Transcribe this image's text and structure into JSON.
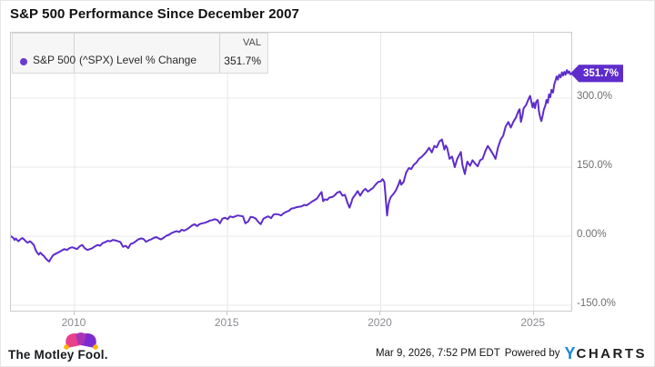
{
  "title": "S&P 500 Performance Since December 2007",
  "legend": {
    "series_name": "S&P 500",
    "series_desc": "(^SPX) Level % Change",
    "val_header": "VAL",
    "val": "351.7%",
    "dot_color": "#6a3bd0"
  },
  "badge": {
    "label": "351.7%",
    "color": "#5e2ccb"
  },
  "footer": {
    "brand": "The Motley Fool.",
    "timestamp": "Mar 9, 2026, 7:52 PM EDT",
    "powered_by": "Powered by",
    "ycharts_y": "Y",
    "ycharts_rest": "CHARTS"
  },
  "chart_data": {
    "type": "line",
    "title": "S&P 500 Performance Since December 2007",
    "xlabel": "",
    "ylabel": "Level % Change",
    "grid": true,
    "grid_color": "#e8e8e8",
    "legend_position": "top-left",
    "xlim": [
      2007.92,
      2026.227
    ],
    "ylim": [
      -161.84,
      442.11
    ],
    "end_value": 351.7,
    "y_ticks": [
      {
        "label": "300.0%",
        "value": 300
      },
      {
        "label": "150.0%",
        "value": 150
      },
      {
        "label": "0.00%",
        "value": 0
      },
      {
        "label": "-150.0%",
        "value": -150
      }
    ],
    "x_ticks": [
      {
        "label": "2010",
        "year": 2010
      },
      {
        "label": "2015",
        "year": 2015
      },
      {
        "label": "2020",
        "year": 2020
      },
      {
        "label": "2025",
        "year": 2025
      }
    ],
    "series": [
      {
        "name": "S&P 500 (^SPX) Level % Change",
        "color": "#5e2ccb",
        "points": [
          [
            2007.92,
            0
          ],
          [
            2008.0,
            -4
          ],
          [
            2008.04,
            -8
          ],
          [
            2008.08,
            -5
          ],
          [
            2008.13,
            -9
          ],
          [
            2008.17,
            -11
          ],
          [
            2008.21,
            -8
          ],
          [
            2008.25,
            -6
          ],
          [
            2008.29,
            -4
          ],
          [
            2008.33,
            -6
          ],
          [
            2008.38,
            -9
          ],
          [
            2008.42,
            -12
          ],
          [
            2008.46,
            -14
          ],
          [
            2008.5,
            -13
          ],
          [
            2008.54,
            -11
          ],
          [
            2008.58,
            -13
          ],
          [
            2008.62,
            -16
          ],
          [
            2008.67,
            -19
          ],
          [
            2008.71,
            -27
          ],
          [
            2008.75,
            -33
          ],
          [
            2008.79,
            -37
          ],
          [
            2008.83,
            -40
          ],
          [
            2008.88,
            -36
          ],
          [
            2008.92,
            -38
          ],
          [
            2008.96,
            -41
          ],
          [
            2009.0,
            -43
          ],
          [
            2009.04,
            -47
          ],
          [
            2009.08,
            -50
          ],
          [
            2009.13,
            -53
          ],
          [
            2009.17,
            -55
          ],
          [
            2009.21,
            -50
          ],
          [
            2009.25,
            -46
          ],
          [
            2009.29,
            -42
          ],
          [
            2009.33,
            -40
          ],
          [
            2009.42,
            -37
          ],
          [
            2009.5,
            -34
          ],
          [
            2009.58,
            -31
          ],
          [
            2009.67,
            -28
          ],
          [
            2009.75,
            -30
          ],
          [
            2009.83,
            -26
          ],
          [
            2009.92,
            -24
          ],
          [
            2010.0,
            -26
          ],
          [
            2010.08,
            -28
          ],
          [
            2010.17,
            -22
          ],
          [
            2010.25,
            -19
          ],
          [
            2010.33,
            -26
          ],
          [
            2010.42,
            -30
          ],
          [
            2010.5,
            -28
          ],
          [
            2010.58,
            -26
          ],
          [
            2010.67,
            -22
          ],
          [
            2010.75,
            -19
          ],
          [
            2010.83,
            -21
          ],
          [
            2010.92,
            -15
          ],
          [
            2011.0,
            -13
          ],
          [
            2011.08,
            -10
          ],
          [
            2011.17,
            -11
          ],
          [
            2011.25,
            -8
          ],
          [
            2011.33,
            -9
          ],
          [
            2011.42,
            -11
          ],
          [
            2011.5,
            -13
          ],
          [
            2011.58,
            -23
          ],
          [
            2011.67,
            -21
          ],
          [
            2011.75,
            -26
          ],
          [
            2011.83,
            -17
          ],
          [
            2011.92,
            -15
          ],
          [
            2012.0,
            -11
          ],
          [
            2012.08,
            -7
          ],
          [
            2012.17,
            -5
          ],
          [
            2012.25,
            -6
          ],
          [
            2012.33,
            -12
          ],
          [
            2012.42,
            -9
          ],
          [
            2012.5,
            -7
          ],
          [
            2012.58,
            -4
          ],
          [
            2012.67,
            -2
          ],
          [
            2012.75,
            -5
          ],
          [
            2012.83,
            -7
          ],
          [
            2012.92,
            -3
          ],
          [
            2013.0,
            1
          ],
          [
            2013.08,
            3
          ],
          [
            2013.17,
            7
          ],
          [
            2013.25,
            9
          ],
          [
            2013.33,
            11
          ],
          [
            2013.42,
            9
          ],
          [
            2013.5,
            14
          ],
          [
            2013.58,
            12
          ],
          [
            2013.67,
            15
          ],
          [
            2013.75,
            19
          ],
          [
            2013.83,
            23
          ],
          [
            2013.92,
            26
          ],
          [
            2014.0,
            22
          ],
          [
            2014.08,
            26
          ],
          [
            2014.17,
            28
          ],
          [
            2014.25,
            29
          ],
          [
            2014.33,
            31
          ],
          [
            2014.42,
            34
          ],
          [
            2014.5,
            35
          ],
          [
            2014.58,
            37
          ],
          [
            2014.67,
            35
          ],
          [
            2014.75,
            28
          ],
          [
            2014.83,
            38
          ],
          [
            2014.92,
            40
          ],
          [
            2015.0,
            37
          ],
          [
            2015.08,
            43
          ],
          [
            2015.17,
            41
          ],
          [
            2015.25,
            43
          ],
          [
            2015.33,
            45
          ],
          [
            2015.42,
            44
          ],
          [
            2015.5,
            43
          ],
          [
            2015.58,
            28
          ],
          [
            2015.67,
            32
          ],
          [
            2015.75,
            42
          ],
          [
            2015.83,
            41
          ],
          [
            2015.92,
            38
          ],
          [
            2016.0,
            31
          ],
          [
            2016.08,
            26
          ],
          [
            2016.17,
            38
          ],
          [
            2016.25,
            41
          ],
          [
            2016.33,
            43
          ],
          [
            2016.42,
            39
          ],
          [
            2016.5,
            47
          ],
          [
            2016.58,
            48
          ],
          [
            2016.67,
            47
          ],
          [
            2016.75,
            45
          ],
          [
            2016.83,
            50
          ],
          [
            2016.92,
            53
          ],
          [
            2017.0,
            55
          ],
          [
            2017.08,
            60
          ],
          [
            2017.17,
            61
          ],
          [
            2017.25,
            63
          ],
          [
            2017.33,
            64
          ],
          [
            2017.42,
            65
          ],
          [
            2017.5,
            68
          ],
          [
            2017.58,
            67
          ],
          [
            2017.67,
            71
          ],
          [
            2017.75,
            75
          ],
          [
            2017.83,
            78
          ],
          [
            2017.92,
            82
          ],
          [
            2018.0,
            90
          ],
          [
            2018.07,
            96
          ],
          [
            2018.12,
            76
          ],
          [
            2018.17,
            80
          ],
          [
            2018.25,
            79
          ],
          [
            2018.33,
            84
          ],
          [
            2018.42,
            85
          ],
          [
            2018.5,
            89
          ],
          [
            2018.58,
            95
          ],
          [
            2018.67,
            97
          ],
          [
            2018.75,
            88
          ],
          [
            2018.83,
            90
          ],
          [
            2018.92,
            72
          ],
          [
            2018.98,
            62
          ],
          [
            2019.04,
            73
          ],
          [
            2019.08,
            82
          ],
          [
            2019.17,
            90
          ],
          [
            2019.25,
            98
          ],
          [
            2019.33,
            88
          ],
          [
            2019.42,
            98
          ],
          [
            2019.5,
            103
          ],
          [
            2019.58,
            97
          ],
          [
            2019.67,
            101
          ],
          [
            2019.75,
            105
          ],
          [
            2019.83,
            112
          ],
          [
            2019.92,
            118
          ],
          [
            2020.0,
            119
          ],
          [
            2020.06,
            124
          ],
          [
            2020.12,
            118
          ],
          [
            2020.16,
            85
          ],
          [
            2020.21,
            45
          ],
          [
            2020.25,
            68
          ],
          [
            2020.29,
            78
          ],
          [
            2020.33,
            85
          ],
          [
            2020.42,
            92
          ],
          [
            2020.5,
            100
          ],
          [
            2020.58,
            112
          ],
          [
            2020.63,
            122
          ],
          [
            2020.67,
            112
          ],
          [
            2020.75,
            118
          ],
          [
            2020.83,
            138
          ],
          [
            2020.92,
            148
          ],
          [
            2021.0,
            146
          ],
          [
            2021.08,
            155
          ],
          [
            2021.17,
            160
          ],
          [
            2021.25,
            168
          ],
          [
            2021.33,
            172
          ],
          [
            2021.42,
            178
          ],
          [
            2021.5,
            184
          ],
          [
            2021.58,
            192
          ],
          [
            2021.67,
            182
          ],
          [
            2021.75,
            196
          ],
          [
            2021.83,
            193
          ],
          [
            2021.92,
            206
          ],
          [
            2022.0,
            210
          ],
          [
            2022.04,
            200
          ],
          [
            2022.08,
            188
          ],
          [
            2022.13,
            197
          ],
          [
            2022.17,
            192
          ],
          [
            2022.25,
            168
          ],
          [
            2022.33,
            173
          ],
          [
            2022.42,
            150
          ],
          [
            2022.5,
            168
          ],
          [
            2022.58,
            178
          ],
          [
            2022.62,
            183
          ],
          [
            2022.67,
            155
          ],
          [
            2022.75,
            135
          ],
          [
            2022.79,
            150
          ],
          [
            2022.83,
            162
          ],
          [
            2022.92,
            153
          ],
          [
            2023.0,
            165
          ],
          [
            2023.08,
            158
          ],
          [
            2023.17,
            152
          ],
          [
            2023.25,
            165
          ],
          [
            2023.33,
            168
          ],
          [
            2023.42,
            185
          ],
          [
            2023.5,
            196
          ],
          [
            2023.58,
            188
          ],
          [
            2023.67,
            178
          ],
          [
            2023.75,
            168
          ],
          [
            2023.83,
            192
          ],
          [
            2023.92,
            210
          ],
          [
            2024.0,
            218
          ],
          [
            2024.08,
            238
          ],
          [
            2024.17,
            248
          ],
          [
            2024.25,
            236
          ],
          [
            2024.33,
            248
          ],
          [
            2024.42,
            258
          ],
          [
            2024.5,
            272
          ],
          [
            2024.54,
            276
          ],
          [
            2024.58,
            248
          ],
          [
            2024.63,
            262
          ],
          [
            2024.67,
            278
          ],
          [
            2024.75,
            285
          ],
          [
            2024.83,
            298
          ],
          [
            2024.88,
            305
          ],
          [
            2024.92,
            293
          ],
          [
            2024.96,
            280
          ],
          [
            2025.0,
            290
          ],
          [
            2025.04,
            278
          ],
          [
            2025.08,
            292
          ],
          [
            2025.13,
            296
          ],
          [
            2025.17,
            272
          ],
          [
            2025.21,
            258
          ],
          [
            2025.25,
            250
          ],
          [
            2025.29,
            262
          ],
          [
            2025.33,
            275
          ],
          [
            2025.38,
            284
          ],
          [
            2025.42,
            296
          ],
          [
            2025.46,
            290
          ],
          [
            2025.5,
            308
          ],
          [
            2025.54,
            302
          ],
          [
            2025.58,
            318
          ],
          [
            2025.63,
            312
          ],
          [
            2025.67,
            330
          ],
          [
            2025.71,
            338
          ],
          [
            2025.75,
            347
          ],
          [
            2025.79,
            340
          ],
          [
            2025.83,
            351
          ],
          [
            2025.88,
            345
          ],
          [
            2025.92,
            356
          ],
          [
            2025.96,
            349
          ],
          [
            2026.0,
            357
          ],
          [
            2026.04,
            351
          ],
          [
            2026.08,
            361
          ],
          [
            2026.12,
            354
          ],
          [
            2026.16,
            358
          ],
          [
            2026.2,
            351.7
          ]
        ]
      }
    ]
  }
}
